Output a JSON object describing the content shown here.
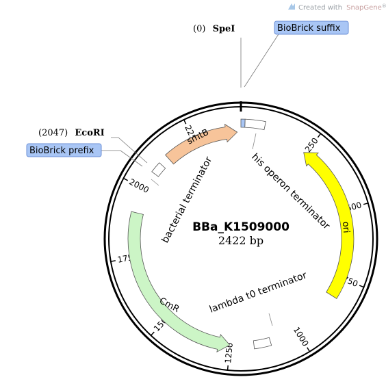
{
  "credit": {
    "prefix": "Created with",
    "brand": "SnapGene",
    "mark": "®"
  },
  "plasmid": {
    "name": "BBa_K1509000",
    "length_label": "2422 bp",
    "length": 2422
  },
  "ticks": [
    {
      "pos": 250,
      "label": "250"
    },
    {
      "pos": 500,
      "label": "500"
    },
    {
      "pos": 750,
      "label": "750"
    },
    {
      "pos": 1000,
      "label": "1000"
    },
    {
      "pos": 1250,
      "label": "1250"
    },
    {
      "pos": 1500,
      "label": "1500"
    },
    {
      "pos": 1750,
      "label": "1750"
    },
    {
      "pos": 2000,
      "label": "2000"
    },
    {
      "pos": 2250,
      "label": "2250"
    }
  ],
  "sites": {
    "spei": {
      "position_label": "(0)",
      "name": "SpeI"
    },
    "ecori": {
      "position_label": "(2047)",
      "name": "EcoRI"
    }
  },
  "callouts": {
    "suffix": "BioBrick suffix",
    "prefix": "BioBrick prefix"
  },
  "features": {
    "smtB": {
      "label": "smtB",
      "color": "#f7c49a"
    },
    "ori": {
      "label": "ori",
      "color": "#ffff00"
    },
    "CmR": {
      "label": "CmR",
      "color": "#ccf5c6"
    },
    "his_term": {
      "label": "his operon terminator"
    },
    "lambda_term": {
      "label": "lambda t0 terminator"
    },
    "bact_term": {
      "label": "bacterial terminator"
    }
  },
  "colors": {
    "callout_fill": "#a9c6f5",
    "callout_border": "#6b8fd6",
    "suffix_box": "#a9c6f5"
  }
}
